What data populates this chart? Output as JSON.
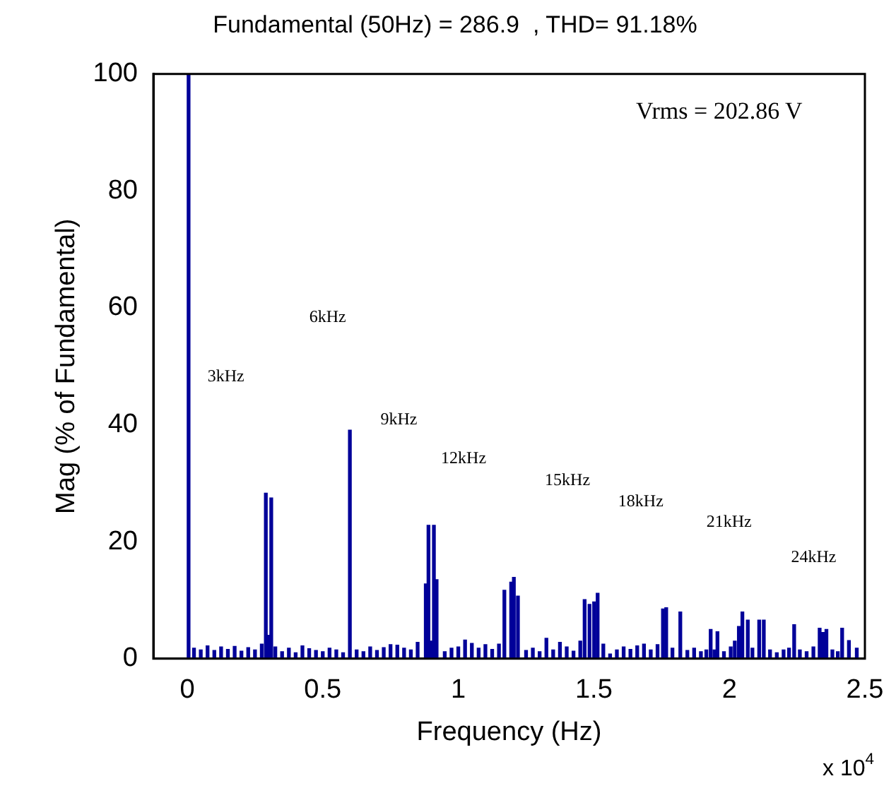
{
  "chart_data": {
    "type": "bar",
    "title": "Fundamental (50Hz) = 286.9  , THD= 91.18%",
    "xlabel": "Frequency (Hz)",
    "ylabel": "Mag (% of Fundamental)",
    "x": [
      0.005,
      0.025,
      0.05,
      0.075,
      0.1,
      0.125,
      0.15,
      0.175,
      0.2,
      0.225,
      0.25,
      0.275,
      0.29,
      0.3,
      0.31,
      0.325,
      0.35,
      0.375,
      0.4,
      0.425,
      0.45,
      0.475,
      0.5,
      0.525,
      0.55,
      0.575,
      0.6,
      0.625,
      0.65,
      0.675,
      0.7,
      0.725,
      0.75,
      0.775,
      0.8,
      0.825,
      0.85,
      0.88,
      0.89,
      0.9,
      0.91,
      0.92,
      0.95,
      0.975,
      1.0,
      1.025,
      1.05,
      1.075,
      1.1,
      1.125,
      1.15,
      1.17,
      1.195,
      1.205,
      1.22,
      1.25,
      1.275,
      1.3,
      1.325,
      1.35,
      1.375,
      1.4,
      1.425,
      1.45,
      1.466,
      1.484,
      1.501,
      1.514,
      1.535,
      1.56,
      1.585,
      1.61,
      1.635,
      1.66,
      1.685,
      1.71,
      1.735,
      1.755,
      1.767,
      1.79,
      1.819,
      1.845,
      1.87,
      1.895,
      1.915,
      1.931,
      1.945,
      1.956,
      1.98,
      2.005,
      2.02,
      2.035,
      2.048,
      2.068,
      2.085,
      2.11,
      2.127,
      2.15,
      2.175,
      2.2,
      2.22,
      2.239,
      2.26,
      2.285,
      2.31,
      2.333,
      2.345,
      2.358,
      2.38,
      2.4,
      2.416,
      2.441,
      2.47
    ],
    "series": [
      {
        "color": "#000099",
        "values": [
          100,
          1.8,
          1.5,
          2.2,
          1.4,
          2.0,
          1.6,
          2.1,
          1.3,
          1.9,
          1.5,
          2.5,
          28.3,
          4,
          27.5,
          2.0,
          1.2,
          1.8,
          1.0,
          2.2,
          1.7,
          1.4,
          1.2,
          1.8,
          1.5,
          1.0,
          39.1,
          1.5,
          1.2,
          2.0,
          1.4,
          1.9,
          2.4,
          2.3,
          1.8,
          1.5,
          2.8,
          12.8,
          22.8,
          3,
          22.8,
          13.5,
          1.2,
          1.8,
          2.0,
          3.2,
          2.6,
          1.8,
          2.4,
          1.6,
          2.5,
          11.7,
          13.1,
          13.9,
          10.7,
          1.4,
          1.8,
          1.2,
          3.5,
          1.5,
          2.8,
          2.0,
          1.3,
          3.0,
          10.1,
          9.3,
          9.7,
          11.2,
          2.5,
          0.8,
          1.5,
          2.0,
          1.6,
          2.2,
          2.5,
          1.5,
          2.4,
          8.5,
          8.7,
          1.8,
          8.0,
          1.4,
          1.8,
          1.2,
          1.5,
          5.0,
          1.5,
          4.6,
          1.2,
          2.0,
          3.0,
          5.5,
          8.0,
          6.6,
          1.8,
          6.6,
          6.6,
          1.5,
          1.0,
          1.5,
          1.8,
          5.8,
          1.5,
          1.2,
          2.0,
          5.2,
          4.5,
          5.0,
          1.5,
          1.2,
          5.2,
          3.1,
          1.8
        ]
      }
    ],
    "xlim": [
      -0.125,
      2.5
    ],
    "xticks": [
      0,
      0.5,
      1,
      1.5,
      2,
      2.5
    ],
    "ylim": [
      0,
      100
    ],
    "yticks": [
      0,
      20,
      40,
      60,
      80,
      100
    ],
    "grid": false,
    "annotations": [
      "Vrms = 202.86 V",
      "x 10$^{4}$",
      "3kHz",
      "6kHz",
      "9kHz",
      "12kHz",
      "15kHz",
      "18kHz",
      "21kHz",
      "24kHz"
    ]
  }
}
